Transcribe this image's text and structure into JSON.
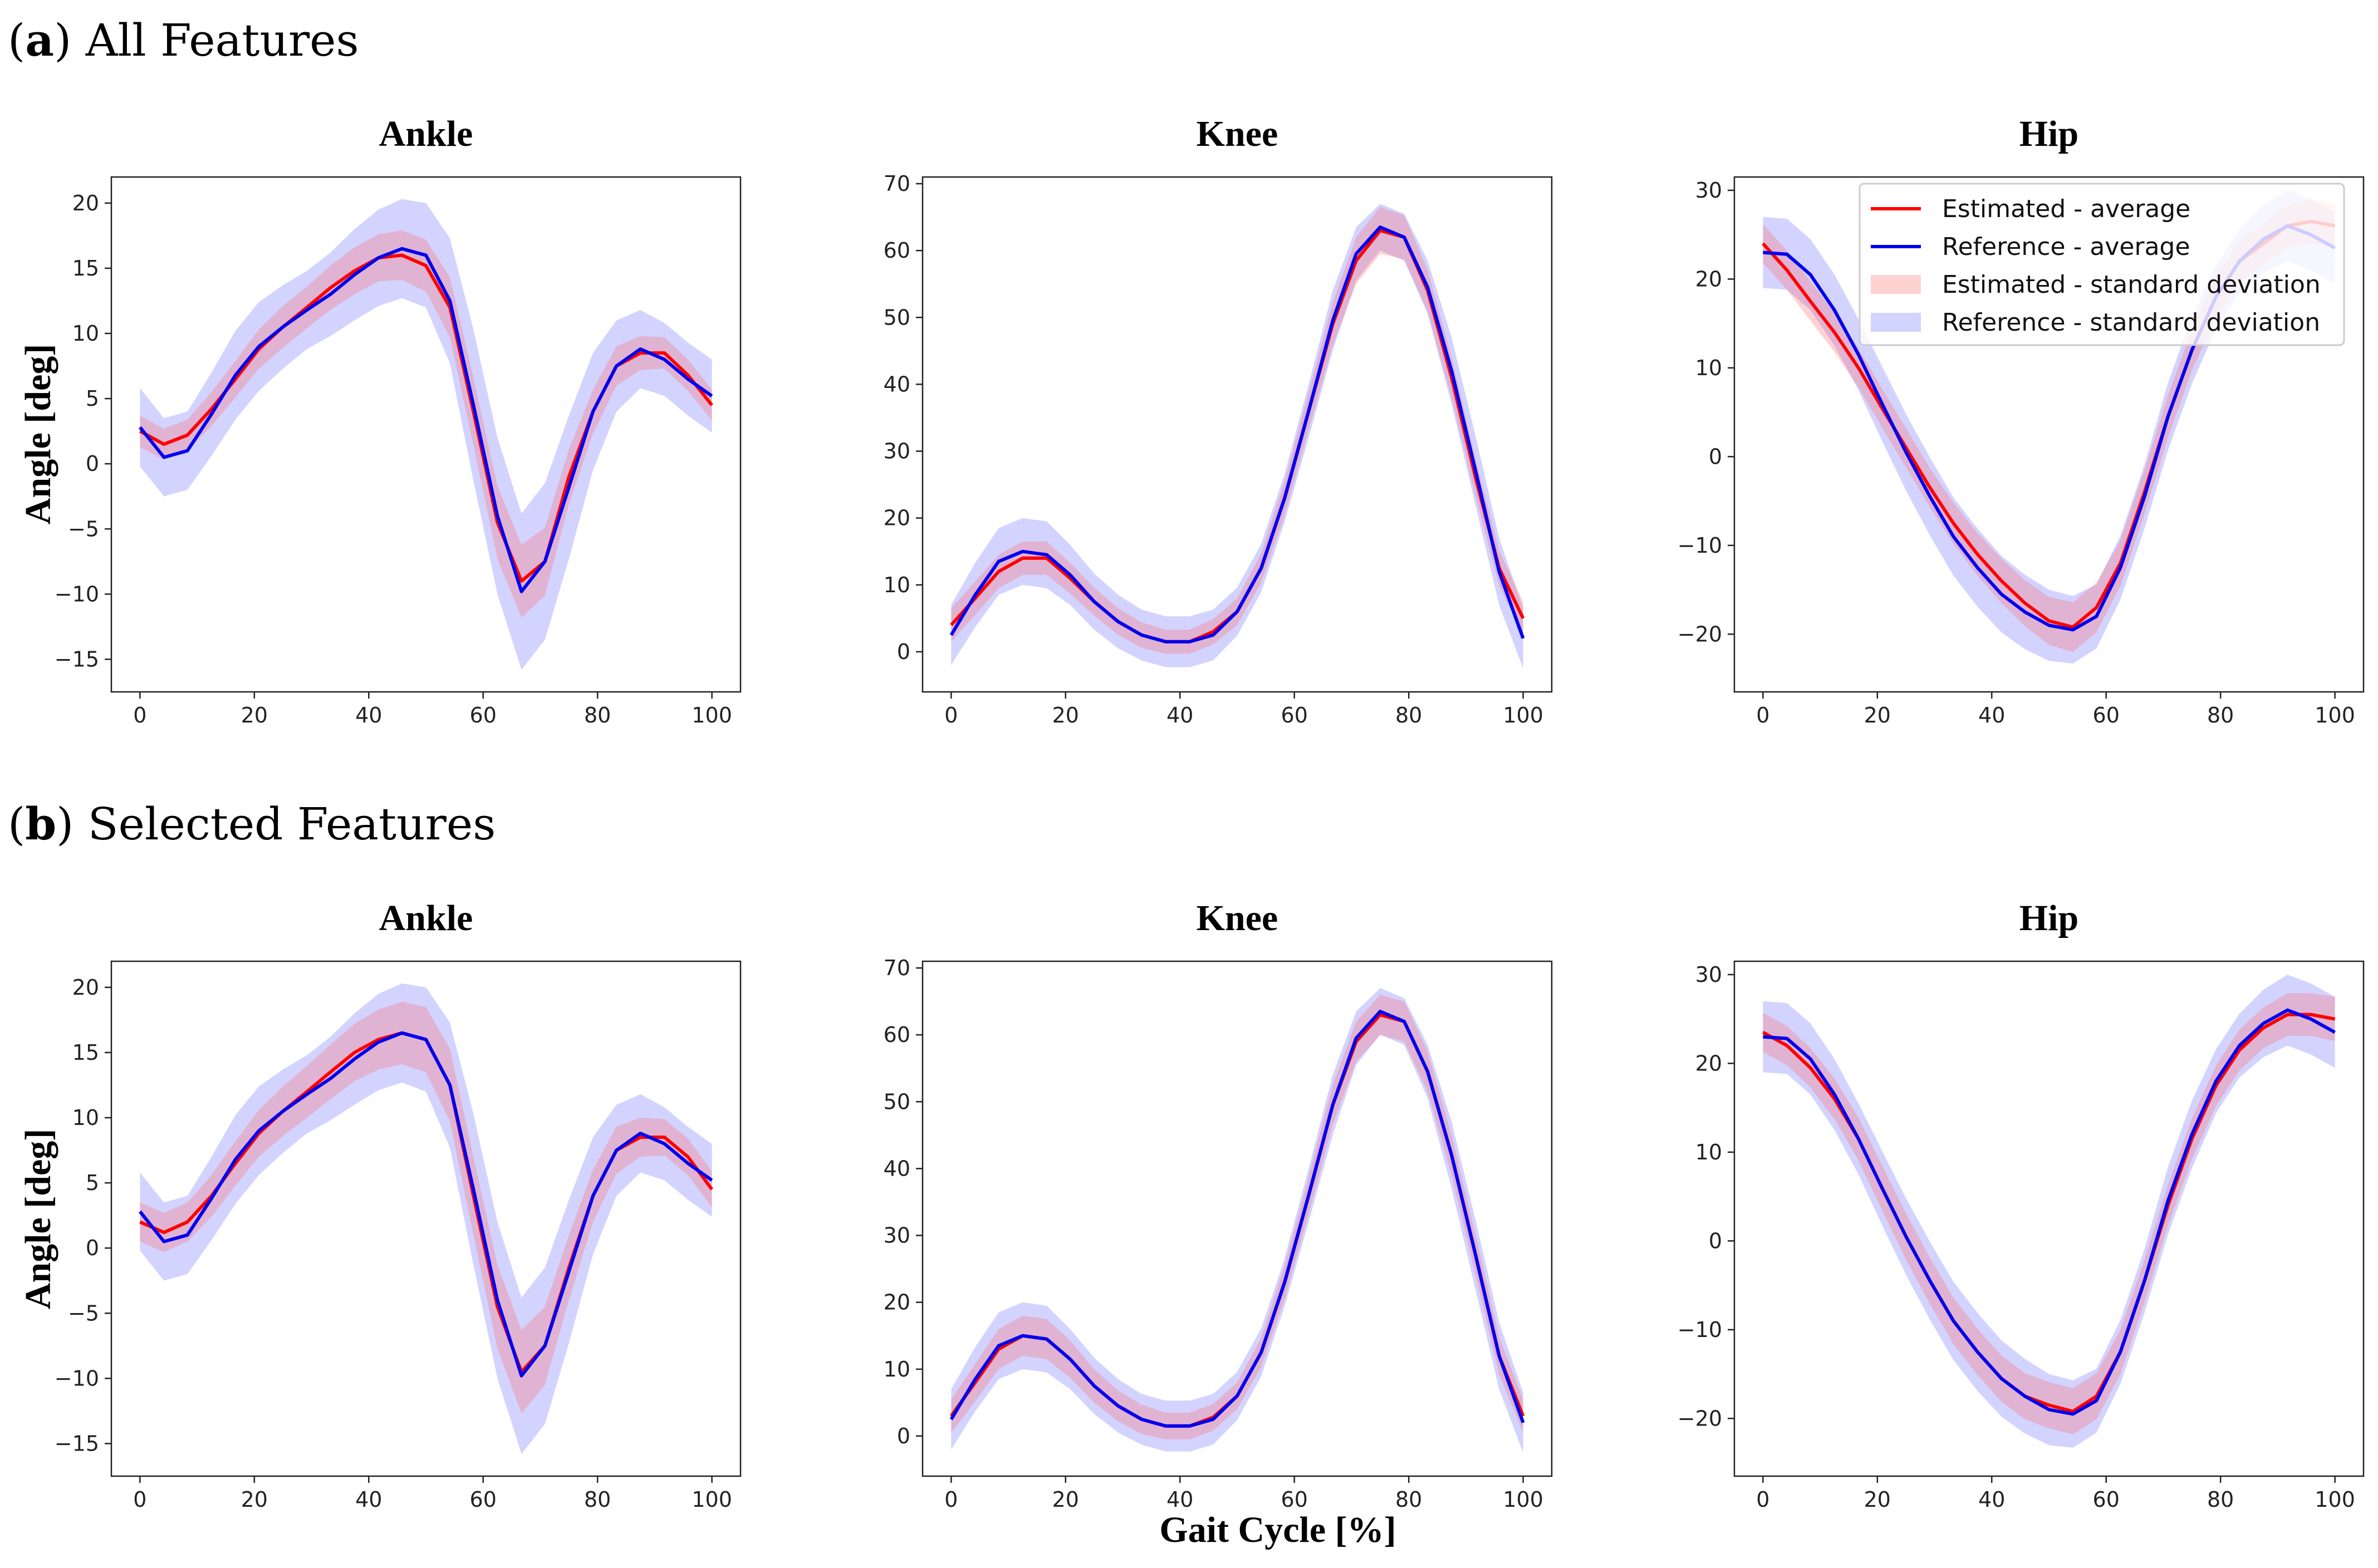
{
  "figure": {
    "row_a": {
      "letter": "a",
      "caption": " All Features"
    },
    "row_b": {
      "letter": "b",
      "caption": " Selected Features"
    },
    "ylabel": "Angle [deg]",
    "xlabel": "Gait Cycle [%]",
    "colors": {
      "estimated": "#ff0000",
      "reference": "#0000ee",
      "estimated_band": "#ff6b6b",
      "reference_band": "#8080ff"
    }
  },
  "legend": {
    "location": "top-right of first-row Hip panel",
    "entries": [
      "Estimated - average",
      "Reference - average",
      "Estimated - standard deviation",
      "Reference - standard deviation"
    ]
  },
  "chart_data": [
    {
      "id": "a-ankle",
      "row": "a",
      "type": "line",
      "title": "Ankle",
      "xlim": [
        -5,
        105
      ],
      "ylim": [
        -17.5,
        22
      ],
      "xticks": [
        0,
        20,
        40,
        60,
        80,
        100
      ],
      "yticks": [
        -15,
        -10,
        -5,
        0,
        5,
        10,
        15,
        20
      ],
      "x": [
        0,
        4.2,
        8.3,
        12.5,
        16.7,
        20.8,
        25,
        29.2,
        33.3,
        37.5,
        41.7,
        45.8,
        50,
        54.2,
        58.3,
        62.5,
        66.7,
        70.8,
        75,
        79.2,
        83.3,
        87.5,
        91.7,
        95.8,
        100
      ],
      "series": [
        {
          "name": "Estimated - average",
          "values": [
            2.5,
            1.5,
            2.2,
            4.2,
            6.5,
            8.8,
            10.5,
            12.0,
            13.5,
            14.8,
            15.8,
            16.0,
            15.2,
            12.0,
            4.0,
            -4.5,
            -9.0,
            -7.5,
            -1.0,
            4.0,
            7.5,
            8.5,
            8.5,
            6.8,
            4.5
          ],
          "sd": [
            1.2,
            1.2,
            1.2,
            1.3,
            1.4,
            1.5,
            1.6,
            1.6,
            1.7,
            1.8,
            1.8,
            1.9,
            2.0,
            2.3,
            2.6,
            2.8,
            2.8,
            2.6,
            2.1,
            1.7,
            1.5,
            1.3,
            1.2,
            1.2,
            1.2
          ]
        },
        {
          "name": "Reference - average",
          "values": [
            2.8,
            0.5,
            1.0,
            3.8,
            6.8,
            9.0,
            10.5,
            11.8,
            13.0,
            14.5,
            15.8,
            16.5,
            16.0,
            12.5,
            4.5,
            -4.0,
            -9.8,
            -7.5,
            -1.8,
            4.0,
            7.5,
            8.8,
            8.0,
            6.5,
            5.2
          ],
          "sd": [
            3.0,
            3.0,
            3.0,
            3.2,
            3.4,
            3.4,
            3.2,
            3.0,
            3.2,
            3.5,
            3.7,
            3.8,
            4.0,
            4.8,
            5.8,
            6.0,
            6.0,
            6.0,
            5.5,
            4.5,
            3.5,
            3.0,
            2.8,
            2.8,
            2.8
          ]
        }
      ]
    },
    {
      "id": "a-knee",
      "row": "a",
      "type": "line",
      "title": "Knee",
      "xlim": [
        -5,
        105
      ],
      "ylim": [
        -6,
        71
      ],
      "xticks": [
        0,
        20,
        40,
        60,
        80,
        100
      ],
      "yticks": [
        0,
        10,
        20,
        30,
        40,
        50,
        60,
        70
      ],
      "x": [
        0,
        4.2,
        8.3,
        12.5,
        16.7,
        20.8,
        25,
        29.2,
        33.3,
        37.5,
        41.7,
        45.8,
        50,
        54.2,
        58.3,
        62.5,
        66.7,
        70.8,
        75,
        79.2,
        83.3,
        87.5,
        91.7,
        95.8,
        100
      ],
      "series": [
        {
          "name": "Estimated - average",
          "values": [
            4.0,
            8.0,
            12.0,
            14.0,
            14.0,
            11.0,
            7.5,
            4.5,
            2.5,
            1.5,
            1.5,
            3.0,
            6.0,
            12.5,
            23.0,
            36.0,
            49.0,
            58.5,
            63.0,
            62.0,
            54.0,
            41.0,
            26.0,
            12.5,
            5.0
          ],
          "sd": [
            2.5,
            2.5,
            2.5,
            2.5,
            2.5,
            2.3,
            2.1,
            2.0,
            1.9,
            1.8,
            1.8,
            1.9,
            2.0,
            2.2,
            2.5,
            2.8,
            3.2,
            3.5,
            3.5,
            3.3,
            3.1,
            3.0,
            2.8,
            2.6,
            2.5
          ]
        },
        {
          "name": "Reference - average",
          "values": [
            2.5,
            8.5,
            13.5,
            15.0,
            14.5,
            11.5,
            7.5,
            4.5,
            2.5,
            1.5,
            1.5,
            2.5,
            6.0,
            12.5,
            23.0,
            36.0,
            49.5,
            59.5,
            63.5,
            62.0,
            54.5,
            42.0,
            27.0,
            12.0,
            2.0
          ],
          "sd": [
            4.5,
            4.8,
            5.0,
            5.0,
            5.0,
            4.5,
            4.2,
            4.0,
            3.8,
            3.8,
            3.8,
            3.8,
            3.6,
            3.6,
            3.6,
            4.0,
            4.5,
            4.0,
            3.5,
            3.5,
            4.0,
            5.0,
            5.2,
            5.0,
            4.5
          ]
        }
      ]
    },
    {
      "id": "a-hip",
      "row": "a",
      "type": "line",
      "title": "Hip",
      "xlim": [
        -5,
        105
      ],
      "ylim": [
        -26.5,
        31.5
      ],
      "xticks": [
        0,
        20,
        40,
        60,
        80,
        100
      ],
      "yticks": [
        -20,
        -10,
        0,
        10,
        20,
        30
      ],
      "x": [
        0,
        4.2,
        8.3,
        12.5,
        16.7,
        20.8,
        25,
        29.2,
        33.3,
        37.5,
        41.7,
        45.8,
        50,
        54.2,
        58.3,
        62.5,
        66.7,
        70.8,
        75,
        79.2,
        83.3,
        87.5,
        91.7,
        95.8,
        100
      ],
      "series": [
        {
          "name": "Estimated - average",
          "values": [
            24.0,
            21.0,
            17.5,
            14.0,
            10.0,
            5.5,
            1.0,
            -3.5,
            -7.5,
            -11.0,
            -14.0,
            -16.5,
            -18.5,
            -19.2,
            -17.0,
            -12.0,
            -4.0,
            4.5,
            12.0,
            18.0,
            22.0,
            24.0,
            26.0,
            26.5,
            26.0
          ],
          "sd": [
            2.2,
            2.2,
            2.2,
            2.2,
            2.2,
            2.2,
            2.2,
            2.2,
            2.3,
            2.4,
            2.5,
            2.6,
            2.7,
            2.8,
            2.8,
            2.6,
            2.5,
            2.4,
            2.3,
            2.3,
            2.3,
            2.3,
            2.4,
            2.5,
            2.5
          ]
        },
        {
          "name": "Reference - average",
          "values": [
            23.0,
            22.8,
            20.5,
            16.5,
            11.5,
            6.0,
            0.5,
            -4.5,
            -9.0,
            -12.5,
            -15.5,
            -17.5,
            -19.0,
            -19.5,
            -18.0,
            -12.5,
            -4.5,
            4.5,
            12.0,
            18.0,
            22.0,
            24.5,
            26.0,
            25.0,
            23.5
          ],
          "sd": [
            4.0,
            4.0,
            4.0,
            4.0,
            4.0,
            4.2,
            4.3,
            4.4,
            4.4,
            4.4,
            4.3,
            4.2,
            4.0,
            3.8,
            3.6,
            3.6,
            3.6,
            3.8,
            3.8,
            3.6,
            3.6,
            3.8,
            4.0,
            4.0,
            4.0
          ]
        }
      ]
    },
    {
      "id": "b-ankle",
      "row": "b",
      "type": "line",
      "title": "Ankle",
      "xlim": [
        -5,
        105
      ],
      "ylim": [
        -17.5,
        22
      ],
      "xticks": [
        0,
        20,
        40,
        60,
        80,
        100
      ],
      "yticks": [
        -15,
        -10,
        -5,
        0,
        5,
        10,
        15,
        20
      ],
      "x": [
        0,
        4.2,
        8.3,
        12.5,
        16.7,
        20.8,
        25,
        29.2,
        33.3,
        37.5,
        41.7,
        45.8,
        50,
        54.2,
        58.3,
        62.5,
        66.7,
        70.8,
        75,
        79.2,
        83.3,
        87.5,
        91.7,
        95.8,
        100
      ],
      "series": [
        {
          "name": "Estimated - average",
          "values": [
            2.0,
            1.2,
            2.0,
            4.0,
            6.5,
            8.8,
            10.5,
            12.0,
            13.5,
            15.0,
            16.0,
            16.5,
            16.0,
            12.5,
            4.0,
            -4.5,
            -9.5,
            -7.5,
            -1.5,
            4.0,
            7.5,
            8.5,
            8.5,
            7.0,
            4.5
          ],
          "sd": [
            1.5,
            1.5,
            1.5,
            1.6,
            1.7,
            1.8,
            1.9,
            2.0,
            2.1,
            2.2,
            2.3,
            2.4,
            2.5,
            2.8,
            3.0,
            3.2,
            3.2,
            3.0,
            2.5,
            2.0,
            1.8,
            1.5,
            1.4,
            1.4,
            1.4
          ]
        },
        {
          "name": "Reference - average",
          "values": [
            2.8,
            0.5,
            1.0,
            3.8,
            6.8,
            9.0,
            10.5,
            11.8,
            13.0,
            14.5,
            15.8,
            16.5,
            16.0,
            12.5,
            4.5,
            -4.0,
            -9.8,
            -7.5,
            -1.8,
            4.0,
            7.5,
            8.8,
            8.0,
            6.5,
            5.2
          ],
          "sd": [
            3.0,
            3.0,
            3.0,
            3.2,
            3.4,
            3.4,
            3.2,
            3.0,
            3.2,
            3.5,
            3.7,
            3.8,
            4.0,
            4.8,
            5.8,
            6.0,
            6.0,
            6.0,
            5.5,
            4.5,
            3.5,
            3.0,
            2.8,
            2.8,
            2.8
          ]
        }
      ]
    },
    {
      "id": "b-knee",
      "row": "b",
      "type": "line",
      "title": "Knee",
      "xlim": [
        -5,
        105
      ],
      "ylim": [
        -6,
        71
      ],
      "xticks": [
        0,
        20,
        40,
        60,
        80,
        100
      ],
      "yticks": [
        0,
        10,
        20,
        30,
        40,
        50,
        60,
        70
      ],
      "x": [
        0,
        4.2,
        8.3,
        12.5,
        16.7,
        20.8,
        25,
        29.2,
        33.3,
        37.5,
        41.7,
        45.8,
        50,
        54.2,
        58.3,
        62.5,
        66.7,
        70.8,
        75,
        79.2,
        83.3,
        87.5,
        91.7,
        95.8,
        100
      ],
      "series": [
        {
          "name": "Estimated - average",
          "values": [
            3.0,
            8.0,
            13.0,
            15.0,
            14.5,
            11.5,
            7.5,
            4.5,
            2.5,
            1.5,
            1.5,
            2.8,
            6.0,
            12.5,
            23.0,
            36.0,
            49.5,
            59.0,
            63.0,
            62.0,
            54.5,
            42.0,
            27.0,
            12.0,
            3.0
          ],
          "sd": [
            2.5,
            2.8,
            3.0,
            3.0,
            3.0,
            2.8,
            2.5,
            2.3,
            2.2,
            2.0,
            2.0,
            2.0,
            2.0,
            2.2,
            2.5,
            2.8,
            3.0,
            3.0,
            3.0,
            3.0,
            3.0,
            3.0,
            3.0,
            2.8,
            2.5
          ]
        },
        {
          "name": "Reference - average",
          "values": [
            2.5,
            8.5,
            13.5,
            15.0,
            14.5,
            11.5,
            7.5,
            4.5,
            2.5,
            1.5,
            1.5,
            2.5,
            6.0,
            12.5,
            23.0,
            36.0,
            49.5,
            59.5,
            63.5,
            62.0,
            54.5,
            42.0,
            27.0,
            12.0,
            2.0
          ],
          "sd": [
            4.5,
            4.8,
            5.0,
            5.0,
            5.0,
            4.5,
            4.2,
            4.0,
            3.8,
            3.8,
            3.8,
            3.8,
            3.6,
            3.6,
            3.6,
            4.0,
            4.5,
            4.0,
            3.5,
            3.5,
            4.0,
            5.0,
            5.2,
            5.0,
            4.5
          ]
        }
      ]
    },
    {
      "id": "b-hip",
      "row": "b",
      "type": "line",
      "title": "Hip",
      "xlim": [
        -5,
        105
      ],
      "ylim": [
        -26.5,
        31.5
      ],
      "xticks": [
        0,
        20,
        40,
        60,
        80,
        100
      ],
      "yticks": [
        -20,
        -10,
        0,
        10,
        20,
        30
      ],
      "x": [
        0,
        4.2,
        8.3,
        12.5,
        16.7,
        20.8,
        25,
        29.2,
        33.3,
        37.5,
        41.7,
        45.8,
        50,
        54.2,
        58.3,
        62.5,
        66.7,
        70.8,
        75,
        79.2,
        83.3,
        87.5,
        91.7,
        95.8,
        100
      ],
      "series": [
        {
          "name": "Estimated - average",
          "values": [
            23.5,
            22.0,
            19.5,
            16.0,
            11.5,
            6.0,
            0.5,
            -4.5,
            -9.0,
            -12.5,
            -15.5,
            -17.5,
            -18.5,
            -19.2,
            -17.5,
            -12.5,
            -4.5,
            4.0,
            11.5,
            17.5,
            21.5,
            24.0,
            25.5,
            25.5,
            25.0
          ],
          "sd": [
            2.2,
            2.2,
            2.2,
            2.3,
            2.4,
            2.5,
            2.6,
            2.6,
            2.6,
            2.6,
            2.6,
            2.6,
            2.6,
            2.6,
            2.6,
            2.5,
            2.4,
            2.3,
            2.3,
            2.3,
            2.3,
            2.3,
            2.4,
            2.4,
            2.5
          ]
        },
        {
          "name": "Reference - average",
          "values": [
            23.0,
            22.8,
            20.5,
            16.5,
            11.5,
            6.0,
            0.5,
            -4.5,
            -9.0,
            -12.5,
            -15.5,
            -17.5,
            -19.0,
            -19.5,
            -18.0,
            -12.5,
            -4.5,
            4.5,
            12.0,
            18.0,
            22.0,
            24.5,
            26.0,
            25.0,
            23.5
          ],
          "sd": [
            4.0,
            4.0,
            4.0,
            4.0,
            4.0,
            4.2,
            4.3,
            4.4,
            4.4,
            4.4,
            4.3,
            4.2,
            4.0,
            3.8,
            3.6,
            3.6,
            3.6,
            3.8,
            3.8,
            3.6,
            3.6,
            3.8,
            4.0,
            4.0,
            4.0
          ]
        }
      ]
    }
  ]
}
